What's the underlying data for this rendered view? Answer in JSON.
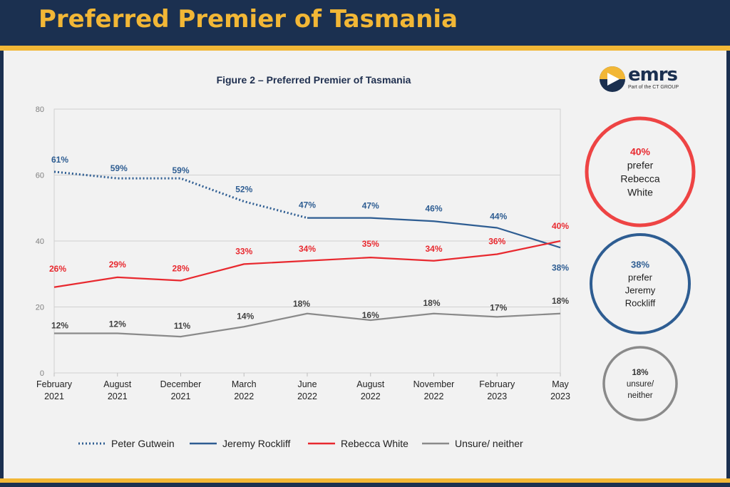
{
  "header": {
    "title": "Preferred Premier of Tasmania"
  },
  "logo": {
    "word": "emrs",
    "tagline": "Part of the CT GROUP"
  },
  "colors": {
    "navy": "#1b3050",
    "gold": "#f2b736",
    "gutwein": "#2e5d92",
    "rockliff": "#2e5d92",
    "white": "#e8292f",
    "unsure": "#8a8a8a"
  },
  "chart_data": {
    "type": "line",
    "title": "Figure 2 – Preferred Premier of Tasmania",
    "xlabel": "",
    "ylabel": "",
    "ylim": [
      0,
      80
    ],
    "yticks": [
      "0",
      "20",
      "40",
      "60",
      "80"
    ],
    "grid": true,
    "legend_placement": "bottom",
    "categories": [
      [
        "February",
        "2021"
      ],
      [
        "August",
        "2021"
      ],
      [
        "December",
        "2021"
      ],
      [
        "March",
        "2022"
      ],
      [
        "June",
        "2022"
      ],
      [
        "August",
        "2022"
      ],
      [
        "November",
        "2022"
      ],
      [
        "February",
        "2023"
      ],
      [
        "May",
        "2023"
      ]
    ],
    "series": [
      {
        "name": "Peter Gutwein",
        "style": "dotted",
        "color": "#2e5d92",
        "values": [
          61,
          59,
          59,
          52,
          47,
          null,
          null,
          null,
          null
        ],
        "labels": [
          "61%",
          "59%",
          "59%",
          "52%",
          "",
          "",
          "",
          "",
          ""
        ]
      },
      {
        "name": "Jeremy Rockliff",
        "style": "solid",
        "color": "#2e5d92",
        "values": [
          null,
          null,
          null,
          null,
          47,
          47,
          46,
          44,
          38
        ],
        "labels": [
          "",
          "",
          "",
          "",
          "47%",
          "47%",
          "46%",
          "44%",
          "38%"
        ]
      },
      {
        "name": "Rebecca White",
        "style": "solid",
        "color": "#e8292f",
        "values": [
          26,
          29,
          28,
          33,
          34,
          35,
          34,
          36,
          40
        ],
        "labels": [
          "26%",
          "29%",
          "28%",
          "33%",
          "34%",
          "35%",
          "34%",
          "36%",
          "40%"
        ]
      },
      {
        "name": "Unsure/ neither",
        "style": "solid",
        "color": "#8a8a8a",
        "values": [
          12,
          12,
          11,
          14,
          18,
          16,
          18,
          17,
          18
        ],
        "labels": [
          "12%",
          "12%",
          "11%",
          "14%",
          "18%",
          "16%",
          "18%",
          "17%",
          "18%"
        ]
      }
    ]
  },
  "summary": [
    {
      "value": "40%",
      "lines": [
        "prefer",
        "Rebecca",
        "White"
      ],
      "color": "#ee4444"
    },
    {
      "value": "38%",
      "lines": [
        "prefer",
        "Jeremy",
        "Rockliff"
      ],
      "color": "#2e5d92"
    },
    {
      "value": "18%",
      "lines": [
        "unsure/",
        "neither"
      ],
      "color": "#8a8a8a"
    }
  ]
}
